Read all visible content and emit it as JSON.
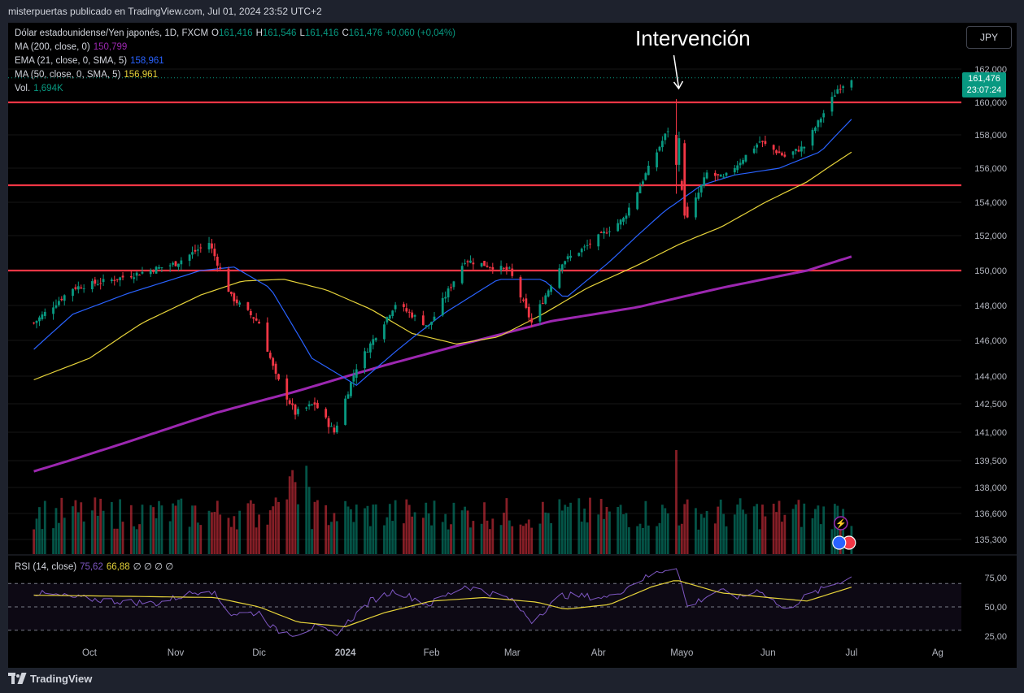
{
  "header": {
    "attribution": "misterpuertas publicado en TradingView.com, Jul 01, 2024 23:52 UTC+2"
  },
  "footer": {
    "brand": "TradingView"
  },
  "currency_button": "JPY",
  "annotation": "Intervención",
  "legend": {
    "symbol": "Dólar estadounidense/Yen japonés, 1D, FXCM",
    "o_label": "O",
    "o": "161,416",
    "h_label": "H",
    "h": "161,546",
    "l_label": "L",
    "l": "161,416",
    "c_label": "C",
    "c": "161,476",
    "change": "+0,060 (+0,04%)",
    "ma200_label": "MA (200, close, 0)",
    "ma200": "150,799",
    "ema21_label": "EMA (21, close, 0, SMA, 5)",
    "ema21": "158,961",
    "ma50_label": "MA (50, close, 0, SMA, 5)",
    "ma50": "156,961",
    "vol_label": "Vol.",
    "vol": "1,694K"
  },
  "rsi_legend": {
    "label": "RSI (14, close)",
    "rsi": "75,62",
    "rsi_ma": "66,88",
    "na": "∅ ∅ ∅ ∅"
  },
  "last_price": {
    "price": "161,476",
    "countdown": "23:07:24"
  },
  "colors": {
    "up": "#089981",
    "down": "#f23645",
    "ma200": "#9c27b0",
    "ema21": "#2962ff",
    "ma50": "#e6d33a",
    "level": "#f23645",
    "rsi": "#7e57c2",
    "rsi_ma": "#e6d33a"
  },
  "chart_data": {
    "type": "candlestick",
    "price_ticks": [
      "162,000",
      "160,000",
      "158,000",
      "156,000",
      "154,000",
      "152,000",
      "150,000",
      "148,000",
      "146,000",
      "144,000",
      "142,500",
      "141,000",
      "139,500",
      "138,000",
      "136,600",
      "135,300"
    ],
    "time_ticks": [
      "Oct",
      "Nov",
      "Dic",
      "2024",
      "Feb",
      "Mar",
      "Abr",
      "Mayo",
      "Jun",
      "Jul",
      "Ag"
    ],
    "horizontal_levels": [
      160.0,
      155.0,
      150.0
    ],
    "price_anchors": [
      {
        "date": "2023-09-11",
        "price": 147.0
      },
      {
        "date": "2023-09-25",
        "price": 149.0
      },
      {
        "date": "2023-10-10",
        "price": 149.5
      },
      {
        "date": "2023-10-20",
        "price": 149.9
      },
      {
        "date": "2023-11-01",
        "price": 150.4
      },
      {
        "date": "2023-11-13",
        "price": 151.6
      },
      {
        "date": "2023-11-21",
        "price": 148.5
      },
      {
        "date": "2023-12-01",
        "price": 147.0
      },
      {
        "date": "2023-12-07",
        "price": 144.0
      },
      {
        "date": "2023-12-14",
        "price": 142.0
      },
      {
        "date": "2023-12-21",
        "price": 142.5
      },
      {
        "date": "2023-12-28",
        "price": 141.0
      },
      {
        "date": "2024-01-05",
        "price": 144.5
      },
      {
        "date": "2024-01-19",
        "price": 148.1
      },
      {
        "date": "2024-01-31",
        "price": 146.8
      },
      {
        "date": "2024-02-13",
        "price": 150.6
      },
      {
        "date": "2024-02-29",
        "price": 150.0
      },
      {
        "date": "2024-03-08",
        "price": 147.0
      },
      {
        "date": "2024-03-19",
        "price": 150.5
      },
      {
        "date": "2024-03-27",
        "price": 151.3
      },
      {
        "date": "2024-04-10",
        "price": 153.0
      },
      {
        "date": "2024-04-26",
        "price": 158.3
      },
      {
        "date": "2024-04-29",
        "price": 156.2
      },
      {
        "date": "2024-05-03",
        "price": 153.0
      },
      {
        "date": "2024-05-10",
        "price": 155.7
      },
      {
        "date": "2024-05-16",
        "price": 155.4
      },
      {
        "date": "2024-05-29",
        "price": 157.6
      },
      {
        "date": "2024-06-07",
        "price": 156.7
      },
      {
        "date": "2024-06-14",
        "price": 157.3
      },
      {
        "date": "2024-06-26",
        "price": 160.8
      },
      {
        "date": "2024-07-01",
        "price": 161.476
      }
    ],
    "intervention_high": {
      "date": "2024-04-29",
      "price": 160.2
    },
    "ma200_anchors": [
      {
        "date": "2023-09-11",
        "price": 138.9
      },
      {
        "date": "2023-10-15",
        "price": 140.5
      },
      {
        "date": "2023-11-15",
        "price": 142.0
      },
      {
        "date": "2023-12-15",
        "price": 143.2
      },
      {
        "date": "2024-01-15",
        "price": 144.6
      },
      {
        "date": "2024-02-15",
        "price": 145.9
      },
      {
        "date": "2024-03-15",
        "price": 147.1
      },
      {
        "date": "2024-04-15",
        "price": 147.9
      },
      {
        "date": "2024-05-15",
        "price": 149.0
      },
      {
        "date": "2024-06-15",
        "price": 150.0
      },
      {
        "date": "2024-07-01",
        "price": 150.799
      }
    ],
    "ema21_anchors": [
      {
        "date": "2023-09-11",
        "price": 145.5
      },
      {
        "date": "2023-09-25",
        "price": 147.5
      },
      {
        "date": "2023-10-15",
        "price": 148.7
      },
      {
        "date": "2023-11-10",
        "price": 150.0
      },
      {
        "date": "2023-11-22",
        "price": 150.2
      },
      {
        "date": "2023-12-05",
        "price": 149.0
      },
      {
        "date": "2023-12-20",
        "price": 145.0
      },
      {
        "date": "2024-01-05",
        "price": 143.5
      },
      {
        "date": "2024-01-20",
        "price": 145.5
      },
      {
        "date": "2024-02-05",
        "price": 147.5
      },
      {
        "date": "2024-02-25",
        "price": 149.5
      },
      {
        "date": "2024-03-12",
        "price": 149.5
      },
      {
        "date": "2024-03-20",
        "price": 148.4
      },
      {
        "date": "2024-04-05",
        "price": 150.5
      },
      {
        "date": "2024-04-25",
        "price": 153.5
      },
      {
        "date": "2024-05-08",
        "price": 155.0
      },
      {
        "date": "2024-05-20",
        "price": 155.6
      },
      {
        "date": "2024-06-05",
        "price": 156.0
      },
      {
        "date": "2024-06-20",
        "price": 157.0
      },
      {
        "date": "2024-07-01",
        "price": 158.961
      }
    ],
    "ma50_anchors": [
      {
        "date": "2023-09-11",
        "price": 143.8
      },
      {
        "date": "2023-10-01",
        "price": 145.0
      },
      {
        "date": "2023-10-20",
        "price": 147.0
      },
      {
        "date": "2023-11-10",
        "price": 148.6
      },
      {
        "date": "2023-11-25",
        "price": 149.4
      },
      {
        "date": "2023-12-10",
        "price": 149.5
      },
      {
        "date": "2023-12-25",
        "price": 148.9
      },
      {
        "date": "2024-01-10",
        "price": 147.8
      },
      {
        "date": "2024-01-25",
        "price": 146.4
      },
      {
        "date": "2024-02-10",
        "price": 145.8
      },
      {
        "date": "2024-02-25",
        "price": 146.2
      },
      {
        "date": "2024-03-12",
        "price": 147.5
      },
      {
        "date": "2024-03-28",
        "price": 149.0
      },
      {
        "date": "2024-04-15",
        "price": 150.3
      },
      {
        "date": "2024-04-30",
        "price": 151.5
      },
      {
        "date": "2024-05-15",
        "price": 152.5
      },
      {
        "date": "2024-05-31",
        "price": 154.0
      },
      {
        "date": "2024-06-15",
        "price": 155.2
      },
      {
        "date": "2024-07-01",
        "price": 156.961
      }
    ],
    "rsi_ticks": [
      "75,00",
      "50,00",
      "25,00"
    ],
    "rsi_bands": [
      70,
      30
    ],
    "rsi_midline": 50,
    "rsi_anchors": [
      {
        "date": "2023-09-11",
        "value": 62
      },
      {
        "date": "2023-09-25",
        "value": 58
      },
      {
        "date": "2023-10-10",
        "value": 55
      },
      {
        "date": "2023-10-25",
        "value": 53
      },
      {
        "date": "2023-11-13",
        "value": 66
      },
      {
        "date": "2023-11-21",
        "value": 44
      },
      {
        "date": "2023-12-01",
        "value": 45
      },
      {
        "date": "2023-12-07",
        "value": 30
      },
      {
        "date": "2023-12-14",
        "value": 27
      },
      {
        "date": "2023-12-21",
        "value": 33
      },
      {
        "date": "2023-12-28",
        "value": 26
      },
      {
        "date": "2024-01-10",
        "value": 55
      },
      {
        "date": "2024-01-19",
        "value": 64
      },
      {
        "date": "2024-01-31",
        "value": 52
      },
      {
        "date": "2024-02-13",
        "value": 68
      },
      {
        "date": "2024-02-29",
        "value": 57
      },
      {
        "date": "2024-03-08",
        "value": 38
      },
      {
        "date": "2024-03-19",
        "value": 60
      },
      {
        "date": "2024-04-05",
        "value": 58
      },
      {
        "date": "2024-04-15",
        "value": 72
      },
      {
        "date": "2024-04-26",
        "value": 83
      },
      {
        "date": "2024-04-29",
        "value": 85
      },
      {
        "date": "2024-05-03",
        "value": 50
      },
      {
        "date": "2024-05-14",
        "value": 64
      },
      {
        "date": "2024-05-22",
        "value": 58
      },
      {
        "date": "2024-05-29",
        "value": 65
      },
      {
        "date": "2024-06-07",
        "value": 47
      },
      {
        "date": "2024-06-14",
        "value": 58
      },
      {
        "date": "2024-06-26",
        "value": 71
      },
      {
        "date": "2024-07-01",
        "value": 75.62
      }
    ],
    "rsi_ma_anchors": [
      {
        "date": "2023-09-11",
        "value": 60
      },
      {
        "date": "2023-10-15",
        "value": 59
      },
      {
        "date": "2023-11-15",
        "value": 58
      },
      {
        "date": "2023-12-01",
        "value": 50
      },
      {
        "date": "2023-12-15",
        "value": 37
      },
      {
        "date": "2024-01-01",
        "value": 33
      },
      {
        "date": "2024-01-15",
        "value": 45
      },
      {
        "date": "2024-02-01",
        "value": 55
      },
      {
        "date": "2024-02-20",
        "value": 58
      },
      {
        "date": "2024-03-10",
        "value": 54
      },
      {
        "date": "2024-03-20",
        "value": 48
      },
      {
        "date": "2024-04-05",
        "value": 52
      },
      {
        "date": "2024-04-20",
        "value": 67
      },
      {
        "date": "2024-04-29",
        "value": 73
      },
      {
        "date": "2024-05-15",
        "value": 62
      },
      {
        "date": "2024-06-01",
        "value": 58
      },
      {
        "date": "2024-06-15",
        "value": 55
      },
      {
        "date": "2024-07-01",
        "value": 66.88
      }
    ]
  }
}
